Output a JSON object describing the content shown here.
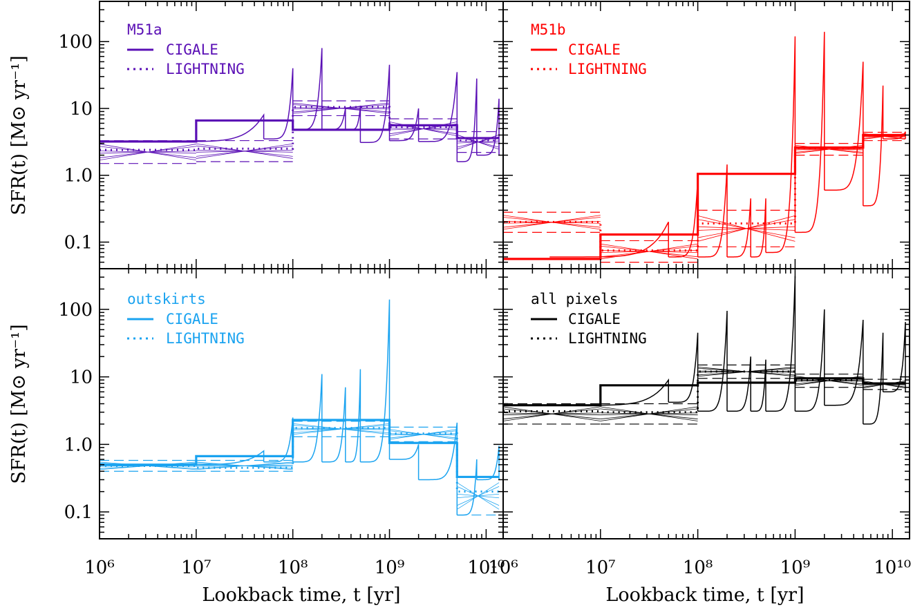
{
  "figure": {
    "xlabel": "Lookback time, t [yr]",
    "ylabel": "SFR(t) [M⊙ yr⁻¹]"
  },
  "chart_data": [
    {
      "type": "line",
      "panel": "top-left",
      "legend_placement": "top-left",
      "color": "#5a0fb5",
      "title": "M51a",
      "legend": [
        "CIGALE",
        "LIGHTNING"
      ],
      "xscale": "log",
      "yscale": "log",
      "xlim": [
        1000000,
        15000000000
      ],
      "ylim": [
        0.04,
        400
      ],
      "x_ticks": [
        "10^6",
        "10^7",
        "10^8",
        "10^9",
        "10^10"
      ],
      "y_ticks": [
        "0.1",
        "1.0",
        "10",
        "100"
      ],
      "bin_edges": [
        1000000,
        10000000,
        100000000,
        1000000000,
        5000000000,
        13600000000
      ],
      "series": [
        {
          "name": "CIGALE",
          "style": "solid",
          "values": [
            3.2,
            6.6,
            4.8,
            5.6,
            3.6
          ]
        },
        {
          "name": "LIGHTNING",
          "style": "dotted",
          "values": [
            2.4,
            2.5,
            10.5,
            5.2,
            3.3
          ],
          "lower": [
            1.5,
            1.6,
            7.8,
            3.5,
            2.2
          ],
          "upper": [
            3.3,
            3.3,
            13.0,
            7.0,
            4.5
          ]
        }
      ],
      "burst_curves": {
        "start_times": [
          50000000,
          100000000,
          200000000,
          350000000,
          500000000,
          1000000000,
          2000000000,
          5000000000,
          8000000000,
          13600000000
        ],
        "peaks": [
          8,
          40,
          80,
          10,
          11,
          45,
          10,
          35,
          28,
          14
        ],
        "floors": [
          3.2,
          3.5,
          4.8,
          4.8,
          4.8,
          3.1,
          3.3,
          3.2,
          1.6,
          2.0
        ]
      }
    },
    {
      "type": "line",
      "panel": "top-right",
      "legend_placement": "top-left",
      "color": "#ff0000",
      "title": "M51b",
      "legend": [
        "CIGALE",
        "LIGHTNING"
      ],
      "xscale": "log",
      "yscale": "log",
      "xlim": [
        1000000,
        15000000000
      ],
      "ylim": [
        0.04,
        400
      ],
      "x_ticks": [
        "10^6",
        "10^7",
        "10^8",
        "10^9",
        "10^10"
      ],
      "y_ticks": [
        "0.1",
        "1.0",
        "10",
        "100"
      ],
      "bin_edges": [
        1000000,
        10000000,
        100000000,
        1000000000,
        5000000000,
        13600000000
      ],
      "series": [
        {
          "name": "CIGALE",
          "style": "solid",
          "values": [
            0.056,
            0.13,
            1.05,
            2.6,
            4.0
          ]
        },
        {
          "name": "LIGHTNING",
          "style": "dotted",
          "values": [
            0.2,
            0.075,
            0.19,
            2.55,
            3.9
          ],
          "lower": [
            0.14,
            0.05,
            0.085,
            2.0,
            3.3
          ],
          "upper": [
            0.28,
            0.105,
            0.3,
            3.0,
            4.4
          ]
        }
      ],
      "burst_curves": {
        "start_times": [
          50000000,
          100000000,
          200000000,
          350000000,
          500000000,
          1000000000,
          2000000000,
          5000000000,
          8000000000,
          13600000000
        ],
        "peaks": [
          0.2,
          0.9,
          1.45,
          0.45,
          0.45,
          120,
          140,
          50,
          22,
          4.5
        ],
        "floors": [
          0.06,
          0.06,
          0.06,
          0.06,
          0.06,
          0.07,
          0.14,
          0.6,
          0.35,
          3.5
        ]
      }
    },
    {
      "type": "line",
      "panel": "bottom-left",
      "legend_placement": "top-left",
      "color": "#1aa3f0",
      "title": "outskirts",
      "legend": [
        "CIGALE",
        "LIGHTNING"
      ],
      "xscale": "log",
      "yscale": "log",
      "xlim": [
        1000000,
        15000000000
      ],
      "ylim": [
        0.04,
        400
      ],
      "x_ticks": [
        "10^6",
        "10^7",
        "10^8",
        "10^9",
        "10^10"
      ],
      "y_ticks": [
        "0.1",
        "1.0",
        "10",
        "100"
      ],
      "bin_edges": [
        1000000,
        10000000,
        100000000,
        1000000000,
        5000000000,
        13600000000
      ],
      "series": [
        {
          "name": "CIGALE",
          "style": "solid",
          "values": [
            0.5,
            0.67,
            2.3,
            1.05,
            0.33
          ]
        },
        {
          "name": "LIGHTNING",
          "style": "dotted",
          "values": [
            0.48,
            0.45,
            1.75,
            1.45,
            0.2
          ],
          "lower": [
            0.4,
            0.4,
            1.3,
            1.1,
            0.09
          ],
          "upper": [
            0.58,
            0.58,
            2.2,
            1.8,
            0.33
          ]
        }
      ],
      "burst_curves": {
        "start_times": [
          50000000,
          100000000,
          200000000,
          350000000,
          500000000,
          1000000000,
          2000000000,
          5000000000,
          8000000000,
          13600000000
        ],
        "peaks": [
          0.8,
          2.5,
          11,
          7,
          13,
          140,
          1.0,
          2.1,
          0.6,
          0.95
        ],
        "floors": [
          0.5,
          0.55,
          0.55,
          0.55,
          0.55,
          0.55,
          0.6,
          0.3,
          0.09,
          0.3
        ]
      }
    },
    {
      "type": "line",
      "panel": "bottom-right",
      "legend_placement": "top-left",
      "color": "#000000",
      "title": "all pixels",
      "legend": [
        "CIGALE",
        "LIGHTNING"
      ],
      "xscale": "log",
      "yscale": "log",
      "xlim": [
        1000000,
        15000000000
      ],
      "ylim": [
        0.04,
        400
      ],
      "x_ticks": [
        "10^6",
        "10^7",
        "10^8",
        "10^9",
        "10^10"
      ],
      "y_ticks": [
        "0.1",
        "1.0",
        "10",
        "100"
      ],
      "bin_edges": [
        1000000,
        10000000,
        100000000,
        1000000000,
        5000000000,
        13600000000
      ],
      "series": [
        {
          "name": "CIGALE",
          "style": "solid",
          "values": [
            3.8,
            7.5,
            8.2,
            9.5,
            8.0
          ]
        },
        {
          "name": "LIGHTNING",
          "style": "dotted",
          "values": [
            3.1,
            3.0,
            12.0,
            8.9,
            8.0
          ],
          "lower": [
            2.0,
            2.0,
            9.5,
            7.0,
            6.5
          ],
          "upper": [
            4.0,
            4.0,
            15.0,
            11.0,
            9.2
          ]
        }
      ],
      "burst_curves": {
        "start_times": [
          50000000,
          100000000,
          200000000,
          350000000,
          500000000,
          1000000000,
          2000000000,
          5000000000,
          8000000000,
          13600000000
        ],
        "peaks": [
          9,
          45,
          95,
          20,
          18,
          310,
          100,
          70,
          45,
          65
        ],
        "floors": [
          3.8,
          4.2,
          3.1,
          3.1,
          3.1,
          3.1,
          3.1,
          3.8,
          2.0,
          6.0
        ]
      }
    }
  ]
}
